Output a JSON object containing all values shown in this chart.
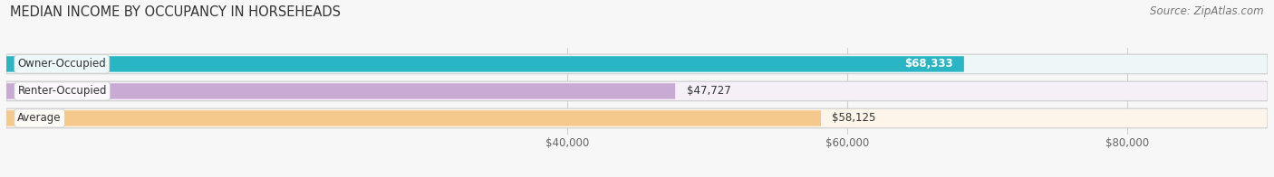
{
  "title": "MEDIAN INCOME BY OCCUPANCY IN HORSEHEADS",
  "source": "Source: ZipAtlas.com",
  "categories": [
    "Owner-Occupied",
    "Renter-Occupied",
    "Average"
  ],
  "values": [
    68333,
    47727,
    58125
  ],
  "bar_colors": [
    "#29b5c3",
    "#c9aad4",
    "#f5c98b"
  ],
  "bar_bg_colors": [
    "#eef7f8",
    "#f5f0f8",
    "#fdf5ea"
  ],
  "label_texts": [
    "$68,333",
    "$47,727",
    "$58,125"
  ],
  "label_inside": [
    true,
    false,
    false
  ],
  "xlabel_ticks": [
    40000,
    60000,
    80000
  ],
  "xlabel_labels": [
    "$40,000",
    "$60,000",
    "$80,000"
  ],
  "xmin": 0,
  "xmax": 90000,
  "title_fontsize": 10.5,
  "source_fontsize": 8.5,
  "label_fontsize": 8.5,
  "category_fontsize": 8.5,
  "tick_fontsize": 8.5,
  "background_color": "#f7f7f7",
  "grid_color": "#d0d0d0",
  "bar_edge_color": "#cccccc"
}
